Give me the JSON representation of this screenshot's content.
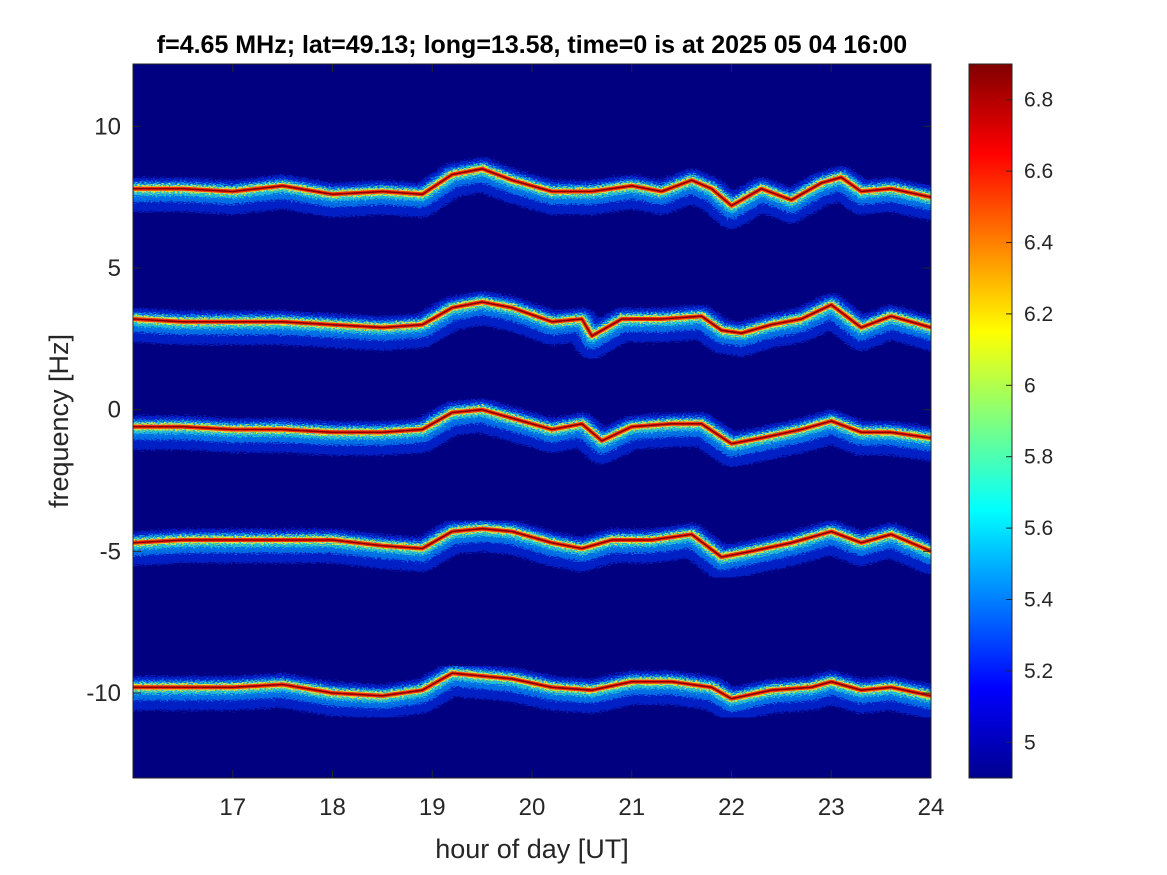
{
  "chart_data": {
    "type": "heatmap",
    "title": "f=4.65 MHz;  lat=49.13; long=13.58, time=0 is at 2025 05 04 16:00",
    "xlabel": "hour of day [UT]",
    "ylabel": "frequency [Hz]",
    "xlim": [
      16,
      24
    ],
    "ylim": [
      -13,
      12.2
    ],
    "xticks": [
      17,
      18,
      19,
      20,
      21,
      22,
      23,
      24
    ],
    "yticks": [
      -10,
      -5,
      0,
      5,
      10
    ],
    "colorbar": {
      "colormap": "jet",
      "limits": [
        4.9,
        6.9
      ],
      "ticks": [
        5,
        5.2,
        5.4,
        5.6,
        5.8,
        6,
        6.2,
        6.4,
        6.6,
        6.8
      ],
      "tick_labels": [
        "5",
        "5.2",
        "5.4",
        "5.6",
        "5.8",
        "6",
        "6.2",
        "6.4",
        "6.6",
        "6.8"
      ]
    },
    "background_color": "#000080",
    "traces": [
      {
        "baseline_hz": 7.9,
        "path": [
          [
            16,
            7.8
          ],
          [
            16.5,
            7.8
          ],
          [
            17.0,
            7.7
          ],
          [
            17.5,
            7.9
          ],
          [
            18.0,
            7.6
          ],
          [
            18.5,
            7.7
          ],
          [
            18.9,
            7.6
          ],
          [
            19.2,
            8.3
          ],
          [
            19.5,
            8.5
          ],
          [
            19.8,
            8.1
          ],
          [
            20.2,
            7.7
          ],
          [
            20.6,
            7.7
          ],
          [
            21.0,
            7.9
          ],
          [
            21.3,
            7.7
          ],
          [
            21.6,
            8.1
          ],
          [
            21.8,
            7.8
          ],
          [
            22.0,
            7.2
          ],
          [
            22.3,
            7.8
          ],
          [
            22.6,
            7.4
          ],
          [
            22.9,
            8.0
          ],
          [
            23.1,
            8.2
          ],
          [
            23.3,
            7.7
          ],
          [
            23.6,
            7.8
          ],
          [
            24,
            7.5
          ]
        ]
      },
      {
        "baseline_hz": 3.1,
        "path": [
          [
            16,
            3.2
          ],
          [
            16.5,
            3.1
          ],
          [
            17.0,
            3.1
          ],
          [
            17.5,
            3.1
          ],
          [
            18.0,
            3.0
          ],
          [
            18.5,
            2.9
          ],
          [
            18.9,
            3.0
          ],
          [
            19.2,
            3.6
          ],
          [
            19.5,
            3.8
          ],
          [
            19.8,
            3.6
          ],
          [
            20.2,
            3.1
          ],
          [
            20.5,
            3.2
          ],
          [
            20.6,
            2.6
          ],
          [
            20.9,
            3.2
          ],
          [
            21.3,
            3.2
          ],
          [
            21.7,
            3.3
          ],
          [
            21.9,
            2.8
          ],
          [
            22.1,
            2.7
          ],
          [
            22.4,
            3.0
          ],
          [
            22.7,
            3.2
          ],
          [
            23.0,
            3.7
          ],
          [
            23.3,
            2.9
          ],
          [
            23.6,
            3.3
          ],
          [
            24,
            2.9
          ]
        ]
      },
      {
        "baseline_hz": -0.6,
        "path": [
          [
            16,
            -0.6
          ],
          [
            16.5,
            -0.6
          ],
          [
            17.0,
            -0.7
          ],
          [
            17.5,
            -0.7
          ],
          [
            18.0,
            -0.8
          ],
          [
            18.5,
            -0.8
          ],
          [
            18.9,
            -0.7
          ],
          [
            19.2,
            -0.1
          ],
          [
            19.5,
            0.0
          ],
          [
            19.8,
            -0.3
          ],
          [
            20.2,
            -0.7
          ],
          [
            20.5,
            -0.5
          ],
          [
            20.7,
            -1.1
          ],
          [
            21.0,
            -0.6
          ],
          [
            21.4,
            -0.5
          ],
          [
            21.7,
            -0.5
          ],
          [
            22.0,
            -1.2
          ],
          [
            22.3,
            -1.0
          ],
          [
            22.7,
            -0.7
          ],
          [
            23.0,
            -0.4
          ],
          [
            23.3,
            -0.8
          ],
          [
            23.6,
            -0.8
          ],
          [
            24,
            -1.0
          ]
        ]
      },
      {
        "baseline_hz": -4.7,
        "path": [
          [
            16,
            -4.7
          ],
          [
            16.5,
            -4.6
          ],
          [
            17.0,
            -4.6
          ],
          [
            17.5,
            -4.6
          ],
          [
            18.0,
            -4.6
          ],
          [
            18.5,
            -4.8
          ],
          [
            18.9,
            -4.9
          ],
          [
            19.2,
            -4.3
          ],
          [
            19.5,
            -4.2
          ],
          [
            19.8,
            -4.3
          ],
          [
            20.2,
            -4.7
          ],
          [
            20.5,
            -4.9
          ],
          [
            20.8,
            -4.6
          ],
          [
            21.2,
            -4.6
          ],
          [
            21.6,
            -4.4
          ],
          [
            21.9,
            -5.2
          ],
          [
            22.2,
            -5.0
          ],
          [
            22.6,
            -4.7
          ],
          [
            23.0,
            -4.3
          ],
          [
            23.3,
            -4.7
          ],
          [
            23.6,
            -4.4
          ],
          [
            24,
            -5.0
          ]
        ]
      },
      {
        "baseline_hz": -9.8,
        "path": [
          [
            16,
            -9.8
          ],
          [
            16.5,
            -9.8
          ],
          [
            17.0,
            -9.8
          ],
          [
            17.5,
            -9.7
          ],
          [
            18.0,
            -10.0
          ],
          [
            18.5,
            -10.1
          ],
          [
            18.9,
            -9.9
          ],
          [
            19.2,
            -9.3
          ],
          [
            19.5,
            -9.4
          ],
          [
            19.8,
            -9.5
          ],
          [
            20.2,
            -9.8
          ],
          [
            20.6,
            -9.9
          ],
          [
            21.0,
            -9.6
          ],
          [
            21.4,
            -9.6
          ],
          [
            21.8,
            -9.8
          ],
          [
            22.0,
            -10.2
          ],
          [
            22.4,
            -9.9
          ],
          [
            22.8,
            -9.8
          ],
          [
            23.0,
            -9.6
          ],
          [
            23.3,
            -9.9
          ],
          [
            23.6,
            -9.8
          ],
          [
            24,
            -10.1
          ]
        ]
      }
    ]
  }
}
